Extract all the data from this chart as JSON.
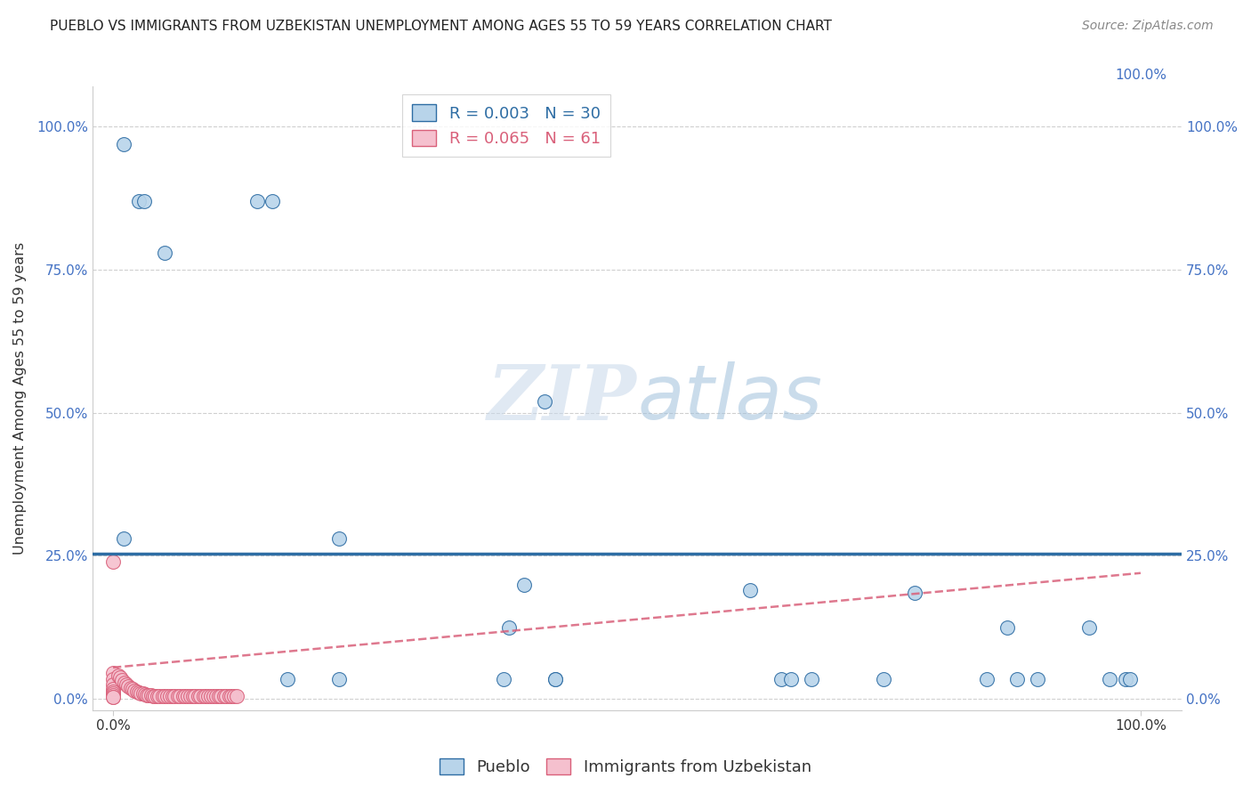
{
  "title": "PUEBLO VS IMMIGRANTS FROM UZBEKISTAN UNEMPLOYMENT AMONG AGES 55 TO 59 YEARS CORRELATION CHART",
  "source": "Source: ZipAtlas.com",
  "ylabel": "Unemployment Among Ages 55 to 59 years",
  "watermark": "ZIPatlas",
  "pueblo_R": 0.003,
  "pueblo_N": 30,
  "uzbek_R": 0.065,
  "uzbek_N": 61,
  "pueblo_color": "#b8d4ea",
  "pueblo_line_color": "#2e6da4",
  "uzbek_color": "#f5c0ce",
  "uzbek_line_color": "#d9607a",
  "pueblo_pts": [
    [
      0.01,
      0.97
    ],
    [
      0.025,
      0.87
    ],
    [
      0.03,
      0.87
    ],
    [
      0.05,
      0.78
    ],
    [
      0.14,
      0.87
    ],
    [
      0.155,
      0.87
    ],
    [
      0.01,
      0.28
    ],
    [
      0.22,
      0.28
    ],
    [
      0.385,
      0.125
    ],
    [
      0.42,
      0.52
    ],
    [
      0.43,
      0.035
    ],
    [
      0.62,
      0.19
    ],
    [
      0.68,
      0.035
    ],
    [
      0.4,
      0.2
    ],
    [
      0.78,
      0.185
    ],
    [
      0.85,
      0.035
    ],
    [
      0.87,
      0.125
    ],
    [
      0.88,
      0.035
    ],
    [
      0.9,
      0.035
    ],
    [
      0.95,
      0.125
    ],
    [
      0.97,
      0.035
    ],
    [
      0.985,
      0.035
    ],
    [
      0.99,
      0.035
    ],
    [
      0.75,
      0.035
    ],
    [
      0.65,
      0.035
    ],
    [
      0.66,
      0.035
    ],
    [
      0.38,
      0.035
    ],
    [
      0.43,
      0.035
    ],
    [
      0.22,
      0.035
    ],
    [
      0.17,
      0.035
    ]
  ],
  "uzbek_pts": [
    [
      0.0,
      0.24
    ],
    [
      0.0,
      0.045
    ],
    [
      0.0,
      0.035
    ],
    [
      0.0,
      0.025
    ],
    [
      0.0,
      0.018
    ],
    [
      0.0,
      0.013
    ],
    [
      0.0,
      0.009
    ],
    [
      0.0,
      0.006
    ],
    [
      0.0,
      0.004
    ],
    [
      0.0,
      0.003
    ],
    [
      0.005,
      0.04
    ],
    [
      0.007,
      0.037
    ],
    [
      0.009,
      0.033
    ],
    [
      0.011,
      0.029
    ],
    [
      0.013,
      0.025
    ],
    [
      0.015,
      0.022
    ],
    [
      0.017,
      0.019
    ],
    [
      0.019,
      0.017
    ],
    [
      0.021,
      0.015
    ],
    [
      0.023,
      0.013
    ],
    [
      0.025,
      0.011
    ],
    [
      0.027,
      0.01
    ],
    [
      0.029,
      0.009
    ],
    [
      0.031,
      0.008
    ],
    [
      0.033,
      0.007
    ],
    [
      0.035,
      0.006
    ],
    [
      0.037,
      0.006
    ],
    [
      0.039,
      0.005
    ],
    [
      0.041,
      0.005
    ],
    [
      0.043,
      0.005
    ],
    [
      0.045,
      0.005
    ],
    [
      0.048,
      0.005
    ],
    [
      0.05,
      0.005
    ],
    [
      0.053,
      0.005
    ],
    [
      0.055,
      0.005
    ],
    [
      0.058,
      0.005
    ],
    [
      0.06,
      0.005
    ],
    [
      0.063,
      0.005
    ],
    [
      0.065,
      0.005
    ],
    [
      0.068,
      0.005
    ],
    [
      0.07,
      0.005
    ],
    [
      0.073,
      0.005
    ],
    [
      0.075,
      0.005
    ],
    [
      0.078,
      0.005
    ],
    [
      0.08,
      0.005
    ],
    [
      0.083,
      0.005
    ],
    [
      0.085,
      0.005
    ],
    [
      0.088,
      0.005
    ],
    [
      0.09,
      0.005
    ],
    [
      0.093,
      0.005
    ],
    [
      0.095,
      0.005
    ],
    [
      0.098,
      0.005
    ],
    [
      0.1,
      0.005
    ],
    [
      0.103,
      0.005
    ],
    [
      0.105,
      0.005
    ],
    [
      0.108,
      0.005
    ],
    [
      0.11,
      0.005
    ],
    [
      0.113,
      0.005
    ],
    [
      0.115,
      0.005
    ],
    [
      0.118,
      0.005
    ],
    [
      0.12,
      0.005
    ]
  ],
  "pueblo_hline_y": 0.254,
  "uzbek_trend_x0": 0.0,
  "uzbek_trend_y0": 0.055,
  "uzbek_trend_x1": 1.0,
  "uzbek_trend_y1": 0.22,
  "xlim": [
    -0.02,
    1.04
  ],
  "ylim": [
    -0.02,
    1.07
  ],
  "xtick_positions": [
    0.0,
    1.0
  ],
  "xtick_labels": [
    "0.0%",
    "100.0%"
  ],
  "ytick_positions": [
    0.0,
    0.25,
    0.5,
    0.75,
    1.0
  ],
  "ytick_labels": [
    "0.0%",
    "25.0%",
    "50.0%",
    "75.0%",
    "100.0%"
  ],
  "marker_size": 130,
  "background_color": "#ffffff",
  "tick_color": "#4472c4",
  "grid_color": "#d0d0d0",
  "spine_color": "#cccccc"
}
